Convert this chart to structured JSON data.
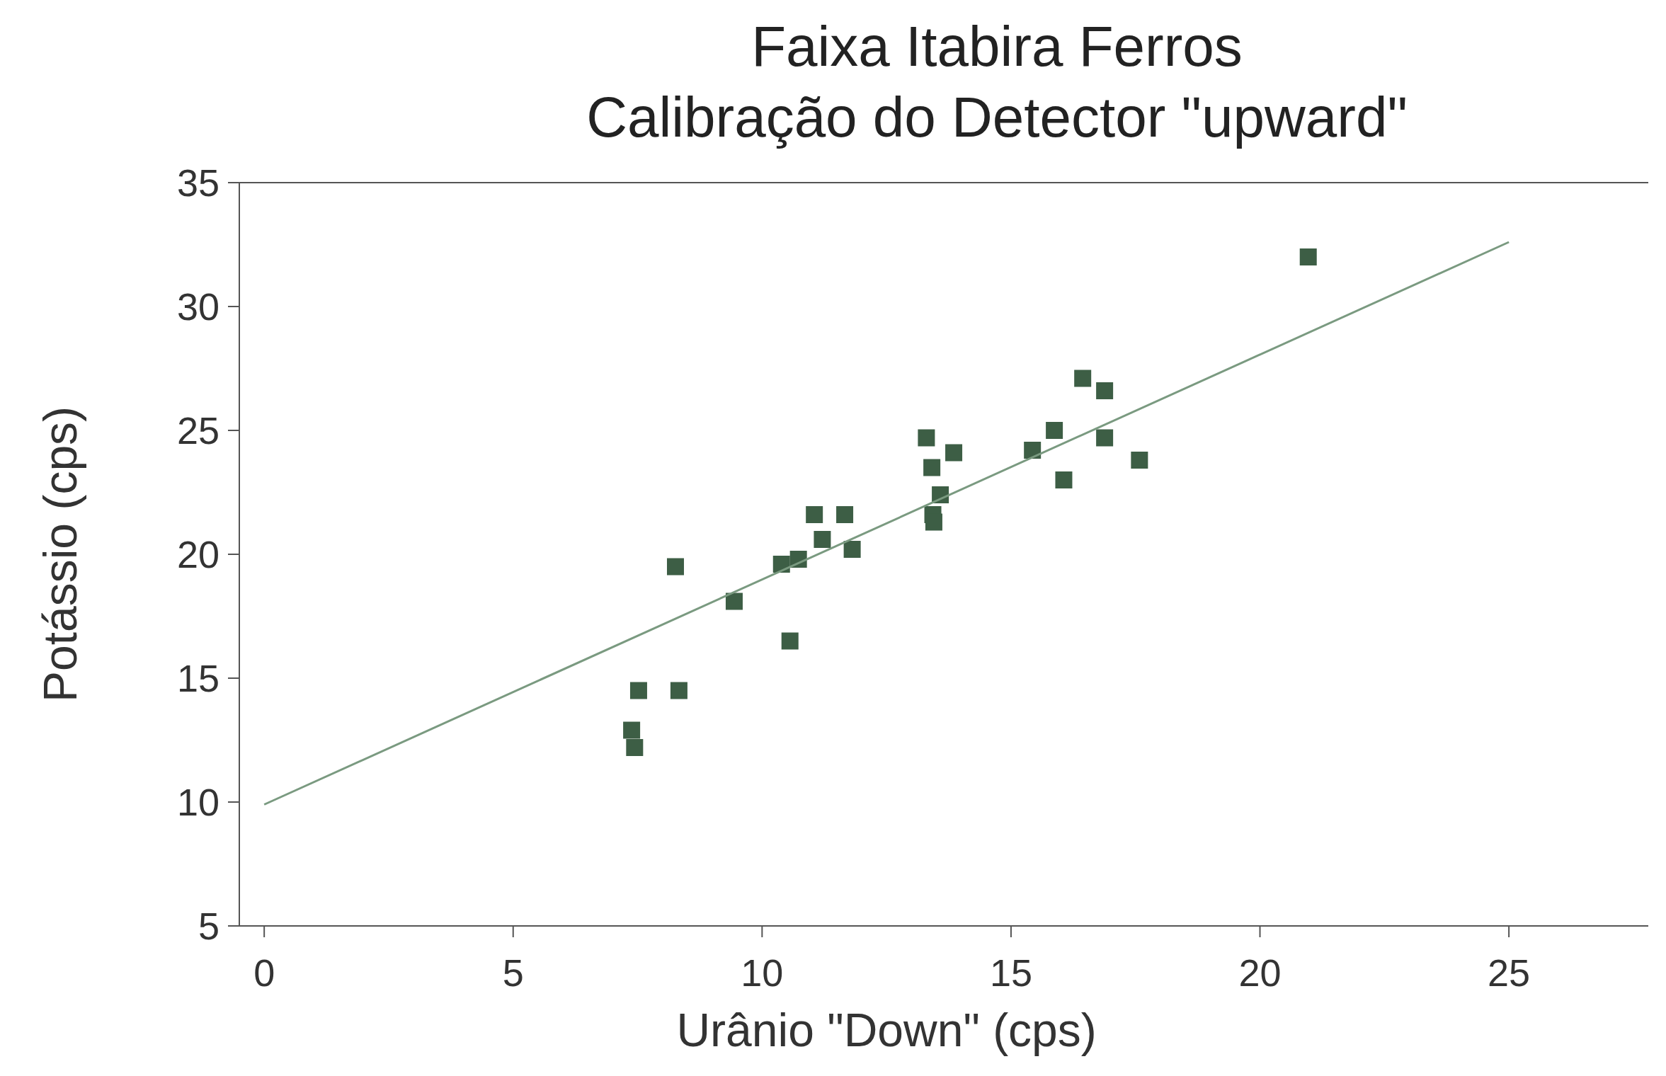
{
  "chart_data": {
    "type": "scatter",
    "title": "Faixa Itabira Ferros",
    "subtitle": "Calibração do Detector \"upward\"",
    "xlabel": "Urânio \"Down\" (cps)",
    "ylabel": "Potássio (cps)",
    "xlim": [
      -0.5,
      27.8
    ],
    "ylim": [
      5,
      35
    ],
    "xticks": [
      0,
      5,
      10,
      15,
      20,
      25
    ],
    "yticks": [
      5,
      10,
      15,
      20,
      25,
      30,
      35
    ],
    "grid": false,
    "marker": "square",
    "series": [
      {
        "color": "#3d5e45",
        "x": [
          7.38,
          7.44,
          7.52,
          8.33,
          8.26,
          9.44,
          10.56,
          10.39,
          10.73,
          11.05,
          11.21,
          11.66,
          11.81,
          13.3,
          13.41,
          13.85,
          13.58,
          13.43,
          13.45,
          15.43,
          15.87,
          16.06,
          16.44,
          16.88,
          16.88,
          17.58,
          20.97
        ],
        "values": [
          12.9,
          12.2,
          14.5,
          14.5,
          19.5,
          18.1,
          16.5,
          19.6,
          19.8,
          21.6,
          20.6,
          21.6,
          20.2,
          24.7,
          23.5,
          24.1,
          22.4,
          21.6,
          21.3,
          24.2,
          25.0,
          23.0,
          27.1,
          26.6,
          24.7,
          23.8,
          32.0
        ]
      },
      {
        "type": "line",
        "color": "#7a9a80",
        "x": [
          0,
          25
        ],
        "values": [
          9.9,
          32.6
        ],
        "marker": "none",
        "line_style": "solid"
      }
    ]
  }
}
